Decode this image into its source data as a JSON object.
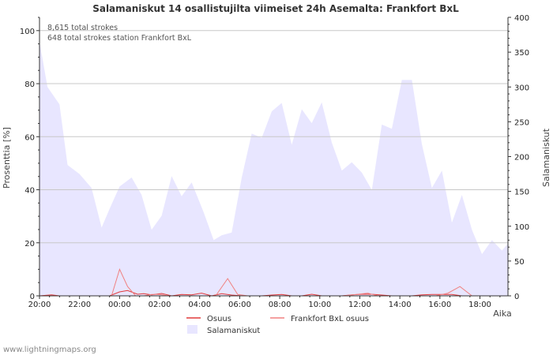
{
  "chart_data": {
    "type": "area",
    "title": "Salamaniskut 14 osallistujilta viimeiset 24h Asemalta: Frankfort BxL",
    "xlabel": "Aika",
    "ylabel_left": "Prosenttia   [%]",
    "ylabel_right": "Salamaniskut",
    "ylim_left": [
      0,
      105
    ],
    "ylim_right": [
      0,
      400
    ],
    "x_range_hours": [
      0,
      23.4
    ],
    "xticks": [
      {
        "label": "20:00",
        "hour": 0
      },
      {
        "label": "22:00",
        "hour": 2
      },
      {
        "label": "00:00",
        "hour": 4
      },
      {
        "label": "02:00",
        "hour": 6
      },
      {
        "label": "04:00",
        "hour": 8
      },
      {
        "label": "06:00",
        "hour": 10
      },
      {
        "label": "08:00",
        "hour": 12
      },
      {
        "label": "10:00",
        "hour": 14
      },
      {
        "label": "12:00",
        "hour": 16
      },
      {
        "label": "14:00",
        "hour": 18
      },
      {
        "label": "16:00",
        "hour": 20
      },
      {
        "label": "18:00",
        "hour": 22
      }
    ],
    "yticks_left": [
      0,
      20,
      40,
      60,
      80,
      100
    ],
    "yticks_right": [
      0,
      50,
      100,
      150,
      200,
      250,
      300,
      350,
      400
    ],
    "annotations": [
      "8,615 total strokes",
      "648 total strokes station Frankfort BxL"
    ],
    "series": [
      {
        "name": "Salamaniskut",
        "axis": "right",
        "color": "#e8e6ff",
        "x": [
          0,
          0.4,
          1,
          1.4,
          2,
          2.6,
          3.1,
          3.5,
          4,
          4.6,
          5.1,
          5.6,
          6.1,
          6.6,
          7.1,
          7.6,
          8.2,
          8.7,
          9.1,
          9.6,
          10.1,
          10.6,
          11.1,
          11.6,
          12.1,
          12.6,
          13.1,
          13.6,
          14.1,
          14.6,
          15.1,
          15.6,
          16.1,
          16.6,
          17.1,
          17.6,
          18.1,
          18.6,
          19.1,
          19.6,
          20.1,
          20.6,
          21.1,
          21.6,
          22.1,
          22.6,
          23.1,
          23.4
        ],
        "values": [
          365,
          300,
          275,
          188,
          175,
          155,
          98,
          125,
          157,
          170,
          145,
          95,
          115,
          172,
          143,
          163,
          120,
          80,
          87,
          91,
          170,
          233,
          227,
          265,
          277,
          217,
          268,
          248,
          278,
          220,
          180,
          192,
          177,
          152,
          246,
          240,
          310,
          310,
          218,
          155,
          180,
          105,
          145,
          95,
          60,
          80,
          65,
          75
        ]
      },
      {
        "name": "Osuus",
        "axis": "left",
        "color": "#e23b3b",
        "x": [
          0,
          0.6,
          1,
          1.5,
          2,
          2.5,
          3,
          3.5,
          4,
          4.4,
          4.9,
          5.2,
          5.6,
          6.1,
          6.6,
          7.1,
          7.6,
          8.1,
          8.6,
          9.1,
          9.6,
          10.1,
          10.6,
          11.1,
          11.6,
          12.1,
          12.6,
          13.1,
          13.6,
          14.1,
          14.6,
          15.1,
          15.6,
          16.1,
          16.6,
          17.1,
          17.6,
          18.1,
          18.6,
          19.1,
          19.6,
          20.1,
          20.6,
          21.1,
          21.6,
          22.1,
          22.6,
          23.1,
          23.4
        ],
        "values": [
          0,
          0.4,
          0,
          0,
          0,
          0,
          0,
          0,
          1.5,
          2,
          0.6,
          0.8,
          0.4,
          0.9,
          0,
          0.5,
          0.4,
          1,
          0,
          0.8,
          0.3,
          0,
          0,
          0,
          0.3,
          0.5,
          0,
          0,
          0.6,
          0,
          0,
          0,
          0.4,
          0.6,
          0.6,
          0.3,
          0,
          0,
          0,
          0.4,
          0.5,
          0.5,
          0.5,
          0,
          0,
          0,
          0,
          0,
          0
        ]
      },
      {
        "name": "Frankfort BxL osuus",
        "axis": "left",
        "color": "#f08080",
        "x": [
          0,
          3.6,
          4,
          4.4,
          4.8,
          5.2,
          5.6,
          6,
          6.4,
          8.8,
          9.4,
          9.9,
          10.4,
          15.2,
          16.4,
          16.9,
          19.8,
          20.4,
          21,
          21.6,
          23.4
        ],
        "values": [
          0,
          0,
          10,
          3.5,
          0,
          0,
          0.5,
          0.5,
          0,
          0,
          6.5,
          0.5,
          0,
          0,
          1,
          0,
          0,
          1,
          3.5,
          0,
          0
        ]
      }
    ],
    "legend": {
      "position": "bottom-center",
      "entries": [
        "Osuus",
        "Frankfort BxL osuus",
        "Salamaniskut"
      ]
    }
  },
  "credit": "www.lightningmaps.org"
}
